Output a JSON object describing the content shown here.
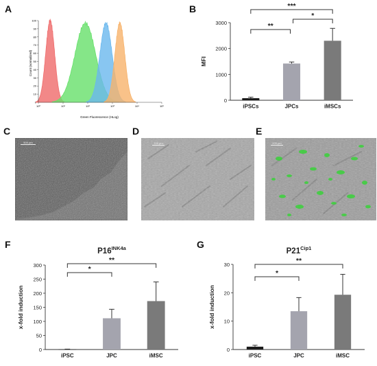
{
  "panels": {
    "A": {
      "letter": "A",
      "xlabel": "Green Fluorescence (HLog)",
      "ylabel": "Count (normalized)",
      "yticks": [
        "0",
        "10",
        "20",
        "30",
        "40",
        "50",
        "60",
        "70",
        "80",
        "90",
        "100"
      ],
      "xticks": [
        "10⁰",
        "10¹",
        "10²",
        "10³",
        "10⁴",
        "10⁵"
      ],
      "colors": [
        "#ef6a6a",
        "#66e06a",
        "#6ab8ee",
        "#f7b36c"
      ]
    },
    "B": {
      "letter": "B"
    },
    "C": {
      "letter": "C",
      "scale": "500 µm"
    },
    "D": {
      "letter": "D",
      "scale": "200 µm"
    },
    "E": {
      "letter": "E",
      "scale": "200 µm"
    },
    "F": {
      "letter": "F"
    },
    "G": {
      "letter": "G"
    }
  },
  "chart_data": [
    {
      "panel": "A",
      "type": "area",
      "xlabel": "Green Fluorescence (HLog)",
      "ylabel": "Count (normalized)",
      "xscale": "log",
      "xlim": [
        1,
        100000
      ],
      "ylim": [
        0,
        100
      ],
      "series": [
        {
          "peak_x": 3,
          "peak_y": 100,
          "color": "#ef6a6a"
        },
        {
          "peak_x": 80,
          "peak_y": 97,
          "color": "#66e06a"
        },
        {
          "peak_x": 550,
          "peak_y": 97,
          "color": "#6ab8ee"
        },
        {
          "peak_x": 2000,
          "peak_y": 97,
          "color": "#f7b36c"
        }
      ]
    },
    {
      "panel": "B",
      "type": "bar",
      "ylabel": "MFI",
      "categories": [
        "iPSCs",
        "JPCs",
        "iMSCs"
      ],
      "values": [
        80,
        1420,
        2300
      ],
      "errors": [
        40,
        60,
        480
      ],
      "ylim": [
        0,
        3000
      ],
      "yticks": [
        0,
        1000,
        2000,
        3000
      ],
      "colors": [
        "#1b1b1b",
        "#a4a4ae",
        "#7a7a7a"
      ],
      "significance": [
        {
          "from": 0,
          "to": 1,
          "label": "**"
        },
        {
          "from": 1,
          "to": 2,
          "label": "*"
        },
        {
          "from": 0,
          "to": 2,
          "label": "***"
        }
      ]
    },
    {
      "panel": "F",
      "type": "bar",
      "title": "P16",
      "title_sup": "INK4a",
      "ylabel": "x-fold induction",
      "categories": [
        "iPSC",
        "JPC",
        "iMSC"
      ],
      "values": [
        1,
        111,
        172
      ],
      "errors": [
        0.5,
        32,
        68
      ],
      "ylim": [
        0,
        300
      ],
      "yticks": [
        0,
        50,
        100,
        150,
        200,
        250,
        300
      ],
      "colors": [
        "#1b1b1b",
        "#a4a4ae",
        "#7a7a7a"
      ],
      "significance": [
        {
          "from": 0,
          "to": 1,
          "label": "*"
        },
        {
          "from": 0,
          "to": 2,
          "label": "**"
        }
      ]
    },
    {
      "panel": "G",
      "type": "bar",
      "title": "P21",
      "title_sup": "Cip1",
      "ylabel": "x-fold induction",
      "categories": [
        "iPSC",
        "JPC",
        "iMSC"
      ],
      "values": [
        1,
        13.5,
        19.3
      ],
      "errors": [
        0.5,
        4.8,
        7.2
      ],
      "ylim": [
        0,
        30
      ],
      "yticks": [
        0,
        10,
        20,
        30
      ],
      "colors": [
        "#1b1b1b",
        "#a4a4ae",
        "#7a7a7a"
      ],
      "significance": [
        {
          "from": 0,
          "to": 1,
          "label": "*"
        },
        {
          "from": 0,
          "to": 2,
          "label": "**"
        }
      ]
    }
  ]
}
